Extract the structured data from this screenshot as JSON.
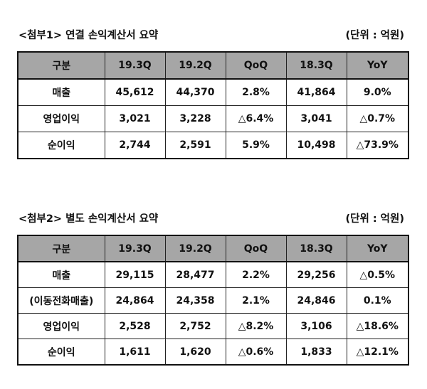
{
  "table1": {
    "title": "<첨부1> 연결 손익계산서 요약",
    "unit": "(단위 : 억원)",
    "headers": [
      "구분",
      "19.3Q",
      "19.2Q",
      "QoQ",
      "18.3Q",
      "YoY"
    ],
    "rows": [
      [
        "매출",
        "45,612",
        "44,370",
        "2.8%",
        "41,864",
        "9.0%"
      ],
      [
        "영업이익",
        "3,021",
        "3,228",
        "△6.4%",
        "3,041",
        "△0.7%"
      ],
      [
        "순이익",
        "2,744",
        "2,591",
        "5.9%",
        "10,498",
        "△73.9%"
      ]
    ]
  },
  "table2": {
    "title": "<첨부2> 별도 손익계산서 요약",
    "unit": "(단위 : 억원)",
    "headers": [
      "구분",
      "19.3Q",
      "19.2Q",
      "QoQ",
      "18.3Q",
      "YoY"
    ],
    "rows": [
      [
        "매출",
        "29,115",
        "28,477",
        "2.2%",
        "29,256",
        "△0.5%"
      ],
      [
        "(이동전화매출)",
        "24,864",
        "24,358",
        "2.1%",
        "24,846",
        "0.1%"
      ],
      [
        "영업이익",
        "2,528",
        "2,752",
        "△8.2%",
        "3,106",
        "△18.6%"
      ],
      [
        "순이익",
        "1,611",
        "1,620",
        "△0.6%",
        "1,833",
        "△12.1%"
      ]
    ]
  }
}
